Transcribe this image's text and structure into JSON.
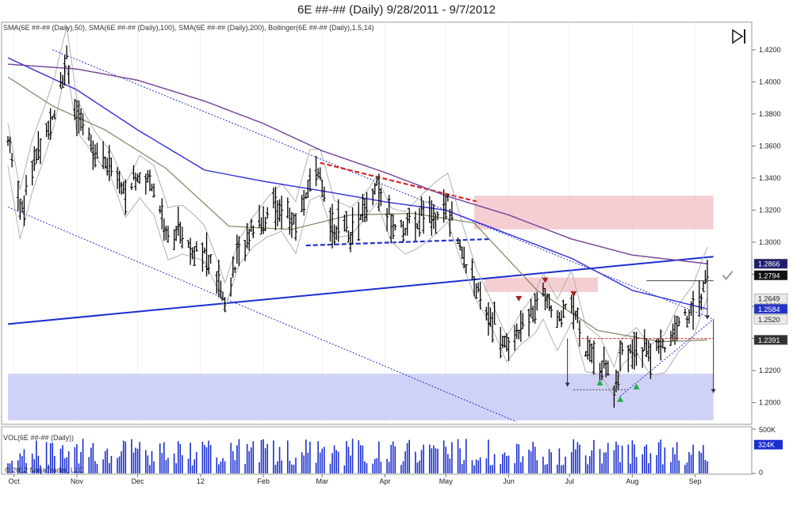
{
  "window_title": "6E ##-## (Daily)  9/28/2011 - 9/7/2012",
  "indicators_label": "SMA(6E ##-## (Daily),50), SMA(6E ##-## (Daily),100), SMA(6E ##-## (Daily),200), Bollinger(6E ##-## (Daily),1.5,14)",
  "volume_label": "VOL(6E ##-## (Daily))",
  "copyright": "© 2012 NinjaTrader, LLC",
  "icons": {
    "play": "play-to-end-icon",
    "check_mark": "check-mark-icon"
  },
  "chart_data": [
    {
      "type": "candlestick",
      "instrument": "6E ##-##",
      "timeframe": "Daily",
      "date_range": [
        "9/28/2011",
        "9/7/2012"
      ],
      "x_tick_labels": [
        "Oct",
        "Nov",
        "Dec",
        "12",
        "Feb",
        "Mar",
        "Apr",
        "May",
        "Jun",
        "Jul",
        "Aug",
        "Sep"
      ],
      "y_tick_labels": [
        "1.4200",
        "1.4000",
        "1.3800",
        "1.3600",
        "1.3400",
        "1.3200",
        "1.3000",
        "1.2800",
        "1.2600",
        "1.2400",
        "1.2200",
        "1.2000"
      ],
      "ylim": [
        1.1865,
        1.4372
      ],
      "price_tags": [
        {
          "value": "1.2866",
          "bg": "#1e1e6e",
          "fg": "#ffffff"
        },
        {
          "value": "1.2794",
          "bg": "#111111",
          "fg": "#ffffff"
        },
        {
          "value": "1.2649",
          "bg": "#e8e8e8",
          "fg": "#222222"
        },
        {
          "value": "1.2584",
          "bg": "#2233cc",
          "fg": "#ffffff"
        },
        {
          "value": "1.2520",
          "bg": "#e8e8e8",
          "fg": "#222222"
        },
        {
          "value": "1.2391",
          "bg": "#333333",
          "fg": "#ffffff"
        }
      ],
      "colors": {
        "sma50": "#8a8a6a",
        "sma100": "#3b3bd9",
        "sma200": "#7a4a9a",
        "bollinger": "#b0b0b0",
        "bars": "#000000"
      },
      "price_path": [
        [
          "9/28/2011",
          1.365
        ],
        [
          "10/4/2011",
          1.32
        ],
        [
          "10/10/2011",
          1.348
        ],
        [
          "10/17/2011",
          1.37
        ],
        [
          "10/21/2011",
          1.385
        ],
        [
          "10/27/2011",
          1.418
        ],
        [
          "11/1/2011",
          1.375
        ],
        [
          "11/10/2011",
          1.36
        ],
        [
          "11/18/2011",
          1.35
        ],
        [
          "11/25/2011",
          1.33
        ],
        [
          "12/2/2011",
          1.345
        ],
        [
          "12/9/2011",
          1.335
        ],
        [
          "12/16/2011",
          1.305
        ],
        [
          "12/23/2011",
          1.305
        ],
        [
          "1/3/2012",
          1.295
        ],
        [
          "1/10/2012",
          1.275
        ],
        [
          "1/13/2012",
          1.265
        ],
        [
          "1/20/2012",
          1.295
        ],
        [
          "1/27/2012",
          1.31
        ],
        [
          "2/3/2012",
          1.32
        ],
        [
          "2/10/2012",
          1.325
        ],
        [
          "2/17/2012",
          1.31
        ],
        [
          "2/24/2012",
          1.34
        ],
        [
          "2/29/2012",
          1.34
        ],
        [
          "3/7/2012",
          1.31
        ],
        [
          "3/15/2012",
          1.31
        ],
        [
          "3/21/2012",
          1.32
        ],
        [
          "3/28/2012",
          1.335
        ],
        [
          "4/4/2012",
          1.315
        ],
        [
          "4/11/2012",
          1.31
        ],
        [
          "4/18/2012",
          1.315
        ],
        [
          "4/25/2012",
          1.32
        ],
        [
          "5/2/2012",
          1.325
        ],
        [
          "5/9/2012",
          1.295
        ],
        [
          "5/16/2012",
          1.27
        ],
        [
          "5/23/2012",
          1.255
        ],
        [
          "5/31/2012",
          1.235
        ],
        [
          "6/7/2012",
          1.25
        ],
        [
          "6/14/2012",
          1.26
        ],
        [
          "6/18/2012",
          1.27
        ],
        [
          "6/25/2012",
          1.25
        ],
        [
          "7/2/2012",
          1.265
        ],
        [
          "7/9/2012",
          1.23
        ],
        [
          "7/16/2012",
          1.225
        ],
        [
          "7/23/2012",
          1.21
        ],
        [
          "7/27/2012",
          1.23
        ],
        [
          "8/3/2012",
          1.24
        ],
        [
          "8/10/2012",
          1.23
        ],
        [
          "8/17/2012",
          1.235
        ],
        [
          "8/24/2012",
          1.25
        ],
        [
          "8/31/2012",
          1.258
        ],
        [
          "9/7/2012",
          1.2794
        ]
      ],
      "sma200_path": [
        [
          "9/28/2011",
          1.411
        ],
        [
          "11/1/2011",
          1.408
        ],
        [
          "12/1/2011",
          1.401
        ],
        [
          "1/3/2012",
          1.388
        ],
        [
          "2/1/2012",
          1.374
        ],
        [
          "3/1/2012",
          1.357
        ],
        [
          "4/2/2012",
          1.343
        ],
        [
          "5/1/2012",
          1.329
        ],
        [
          "6/1/2012",
          1.317
        ],
        [
          "7/2/2012",
          1.302
        ],
        [
          "8/1/2012",
          1.292
        ],
        [
          "9/7/2012",
          1.2866
        ]
      ],
      "sma100_path": [
        [
          "9/28/2011",
          1.415
        ],
        [
          "11/1/2011",
          1.395
        ],
        [
          "12/1/2011",
          1.37
        ],
        [
          "1/3/2012",
          1.345
        ],
        [
          "2/1/2012",
          1.338
        ],
        [
          "3/1/2012",
          1.332
        ],
        [
          "4/2/2012",
          1.325
        ],
        [
          "5/1/2012",
          1.32
        ],
        [
          "6/1/2012",
          1.305
        ],
        [
          "7/2/2012",
          1.29
        ],
        [
          "8/1/2012",
          1.27
        ],
        [
          "9/7/2012",
          1.2584
        ]
      ],
      "sma50_path": [
        [
          "9/28/2011",
          1.403
        ],
        [
          "10/20/2011",
          1.385
        ],
        [
          "11/15/2011",
          1.37
        ],
        [
          "12/15/2011",
          1.346
        ],
        [
          "1/15/2012",
          1.31
        ],
        [
          "2/15/2012",
          1.308
        ],
        [
          "3/15/2012",
          1.317
        ],
        [
          "4/15/2012",
          1.318
        ],
        [
          "5/15/2012",
          1.312
        ],
        [
          "6/15/2012",
          1.27
        ],
        [
          "7/15/2012",
          1.245
        ],
        [
          "8/15/2012",
          1.238
        ],
        [
          "9/7/2012",
          1.2391
        ]
      ],
      "zones": [
        {
          "from": "5/15/2012",
          "to": "9/10/2012",
          "low": 1.308,
          "high": 1.329,
          "color": "#f3c6cc"
        },
        {
          "from": "5/20/2012",
          "to": "7/15/2012",
          "low": 1.269,
          "high": 1.278,
          "color": "#f3c6cc"
        },
        {
          "from": "9/28/2011",
          "to": "9/10/2012",
          "low": 1.189,
          "high": 1.218,
          "color": "#c7c9f5"
        }
      ],
      "lines": [
        {
          "name": "lower-channel",
          "from": [
            "9/28/2011",
            1.322
          ],
          "to": [
            "6/5/2012",
            1.188
          ],
          "color": "#2233cc",
          "style": "dotted"
        },
        {
          "name": "upper-channel",
          "from": [
            "10/20/2011",
            1.42
          ],
          "to": [
            "9/10/2012",
            1.252
          ],
          "color": "#2233cc",
          "style": "dotted"
        },
        {
          "name": "long-trendline",
          "from": [
            "9/28/2011",
            1.249
          ],
          "to": [
            "9/10/2012",
            1.291
          ],
          "color": "#1a2fd0",
          "style": "solid"
        },
        {
          "name": "red-resistance",
          "from": [
            "2/29/2012",
            1.3495
          ],
          "to": [
            "5/16/2012",
            1.3255
          ],
          "color": "#dd2222",
          "style": "dashed"
        },
        {
          "name": "blue-support",
          "from": [
            "2/22/2012",
            1.298
          ],
          "to": [
            "5/23/2012",
            1.302
          ],
          "color": "#2233cc",
          "style": "dashed"
        },
        {
          "name": "rising-support",
          "from": [
            "7/26/2012",
            1.204
          ],
          "to": [
            "9/10/2012",
            1.252
          ],
          "color": "#2233cc",
          "style": "dotted"
        }
      ]
    },
    {
      "type": "bar",
      "name": "volume",
      "y_tick_labels": [
        "500K",
        "0"
      ],
      "last_value_label": "324K",
      "ylim": [
        0,
        500000
      ],
      "color": "#1a2fd0"
    }
  ]
}
